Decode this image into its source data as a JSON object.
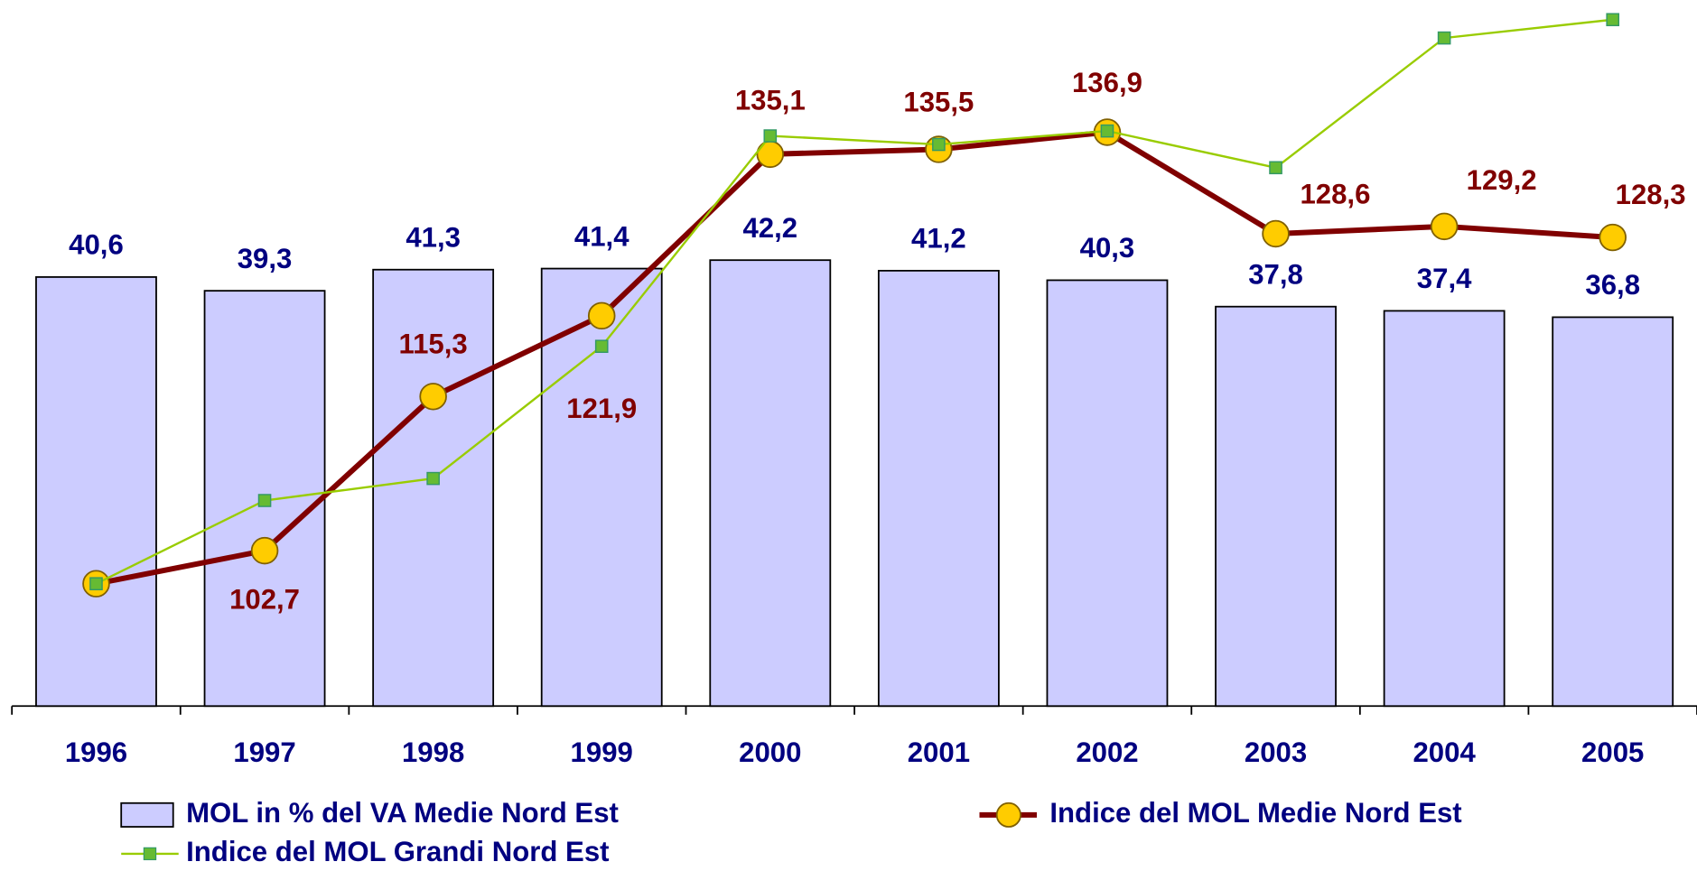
{
  "chart_data": {
    "type": "bar",
    "categories": [
      "1996",
      "1997",
      "1998",
      "1999",
      "2000",
      "2001",
      "2002",
      "2003",
      "2004",
      "2005"
    ],
    "ylim": [
      0,
      66
    ],
    "y2lim": [
      90,
      147
    ],
    "series": [
      {
        "name": "MOL in % del VA Medie Nord Est",
        "type": "bar",
        "color": "#ccccff",
        "values": [
          40.6,
          39.3,
          41.3,
          41.4,
          42.2,
          41.2,
          40.3,
          37.8,
          37.4,
          36.8
        ],
        "value_labels": [
          "40,6",
          "39,3",
          "41,3",
          "41,4",
          "42,2",
          "41,2",
          "40,3",
          "37,8",
          "37,4",
          "36,8"
        ]
      },
      {
        "name": "Indice del MOL Medie Nord Est",
        "type": "line",
        "axis": "y2",
        "color": "#800000",
        "marker_color": "#ffcc00",
        "values": [
          100,
          102.7,
          115.3,
          121.9,
          135.1,
          135.5,
          136.9,
          128.6,
          129.2,
          128.3
        ],
        "value_labels": [
          null,
          "102,7",
          "115,3",
          "121,9",
          "135,1",
          "135,5",
          "136,9",
          "128,6",
          "129,2",
          "128,3"
        ]
      },
      {
        "name": "Indice del MOL Grandi Nord Est",
        "type": "line",
        "axis": "y2",
        "color": "#99cc00",
        "marker_color": "#66bb33",
        "values": [
          100,
          106.8,
          108.6,
          119.4,
          136.6,
          135.9,
          137.0,
          134.0,
          144.6,
          146.1
        ]
      }
    ]
  }
}
